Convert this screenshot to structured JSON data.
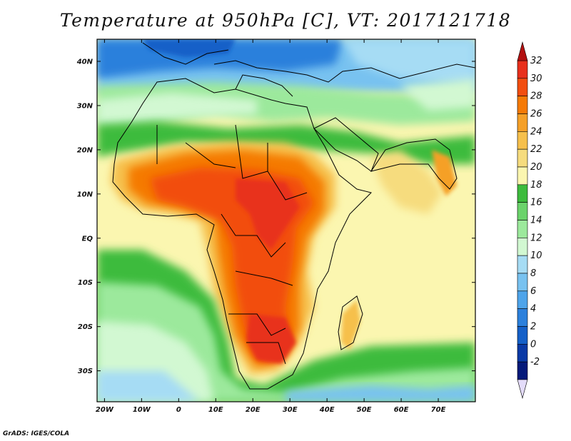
{
  "title": "Temperature at 950hPa [C], VT: 2017121718",
  "credit": "GrADS: IGES/COLA",
  "map": {
    "lon_range": [
      -22,
      80
    ],
    "lat_range": [
      -37,
      45
    ],
    "lat_labels": [
      {
        "lat": 40,
        "text": "40N"
      },
      {
        "lat": 30,
        "text": "30N"
      },
      {
        "lat": 20,
        "text": "20N"
      },
      {
        "lat": 10,
        "text": "10N"
      },
      {
        "lat": 0,
        "text": "EQ"
      },
      {
        "lat": -10,
        "text": "10S"
      },
      {
        "lat": -20,
        "text": "20S"
      },
      {
        "lat": -30,
        "text": "30S"
      }
    ],
    "lon_labels": [
      {
        "lon": -20,
        "text": "20W"
      },
      {
        "lon": -10,
        "text": "10W"
      },
      {
        "lon": 0,
        "text": "0"
      },
      {
        "lon": 10,
        "text": "10E"
      },
      {
        "lon": 20,
        "text": "20E"
      },
      {
        "lon": 30,
        "text": "30E"
      },
      {
        "lon": 40,
        "text": "40E"
      },
      {
        "lon": 50,
        "text": "50E"
      },
      {
        "lon": 60,
        "text": "60E"
      },
      {
        "lon": 70,
        "text": "70E"
      }
    ]
  },
  "colorbar": {
    "levels": [
      "32",
      "30",
      "28",
      "26",
      "24",
      "22",
      "20",
      "18",
      "16",
      "14",
      "12",
      "10",
      "8",
      "6",
      "4",
      "2",
      "0",
      "-2"
    ],
    "colors_top_to_bottom": [
      "#e8301c",
      "#f24e10",
      "#f57a06",
      "#f5a028",
      "#f6c04c",
      "#f6dc7e",
      "#fbf6b0",
      "#3dbb3d",
      "#6bd36b",
      "#9ce99c",
      "#d2f8d2",
      "#a6dcf4",
      "#78c2f0",
      "#4ea4ea",
      "#2c80dc",
      "#1560c8",
      "#0a3aa6",
      "#051a7a"
    ],
    "top_arrow_color": "#b21010",
    "bottom_arrow_color": "#e4dcfa"
  }
}
